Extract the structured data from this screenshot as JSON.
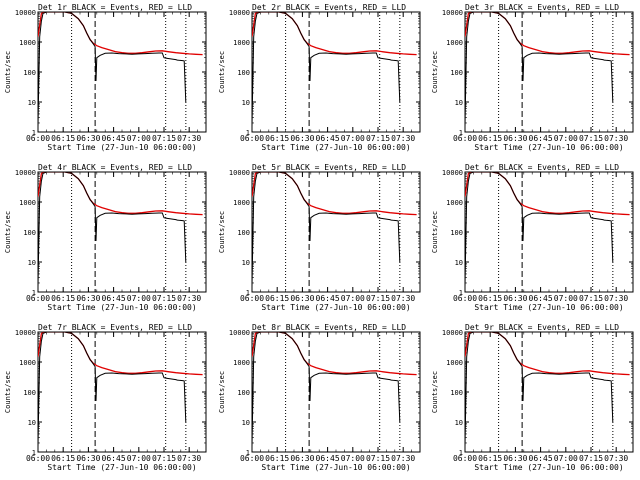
{
  "colors": {
    "events": "#000000",
    "lld": "#e00000",
    "axis": "#000000"
  },
  "chart_data": {
    "type": "line",
    "panel_count": 9,
    "layout": "3x3 grid",
    "x_tick_labels": [
      "06:00",
      "06:15",
      "06:30",
      "06:45",
      "07:00",
      "07:15",
      "07:30"
    ],
    "x_range_minutes": [
      0,
      100
    ],
    "xlabel": "Start Time (27-Jun-10 06:00:00)",
    "ylabel": "Counts/sec",
    "y_scale": "log",
    "ylim": [
      1,
      10000
    ],
    "y_tick_labels": [
      "1",
      "10",
      "100",
      "1000",
      "10000"
    ],
    "vertical_markers": {
      "dotted_minutes": [
        20,
        76,
        88
      ],
      "dashed_minutes": [
        34
      ]
    },
    "panels": [
      {
        "title": "Det 1r BLACK = Events, RED = LLD"
      },
      {
        "title": "Det 2r BLACK = Events, RED = LLD"
      },
      {
        "title": "Det 3r BLACK = Events, RED = LLD"
      },
      {
        "title": "Det 4r BLACK = Events, RED = LLD"
      },
      {
        "title": "Det 5r BLACK = Events, RED = LLD"
      },
      {
        "title": "Det 6r BLACK = Events, RED = LLD"
      },
      {
        "title": "Det 7r BLACK = Events, RED = LLD"
      },
      {
        "title": "Det 8r BLACK = Events, RED = LLD"
      },
      {
        "title": "Det 9r BLACK = Events, RED = LLD"
      }
    ],
    "series": [
      {
        "name": "LLD",
        "color": "red",
        "x": [
          0,
          2,
          5,
          8,
          12,
          16,
          20,
          24,
          27,
          29,
          31,
          33,
          35,
          38,
          42,
          46,
          50,
          54,
          58,
          62,
          66,
          70,
          74,
          78,
          82,
          86,
          90,
          94,
          98
        ],
        "y": [
          1500,
          9000,
          10000,
          10000,
          10000,
          10000,
          9000,
          6000,
          3500,
          2000,
          1200,
          900,
          750,
          650,
          560,
          480,
          440,
          420,
          420,
          440,
          470,
          500,
          510,
          470,
          440,
          420,
          400,
          390,
          380
        ]
      },
      {
        "name": "Events",
        "color": "black",
        "x": [
          0,
          0.5,
          1,
          2,
          3,
          5,
          8,
          12,
          16,
          20,
          24,
          27,
          29,
          31,
          33,
          34,
          34.5,
          35,
          37,
          40,
          44,
          48,
          52,
          56,
          60,
          64,
          68,
          72,
          74,
          75,
          76,
          78,
          80,
          82,
          83,
          84,
          86,
          87,
          88
        ],
        "y": [
          1.5,
          50,
          1500,
          5000,
          9000,
          10000,
          10000,
          10000,
          10000,
          9000,
          6000,
          3500,
          2000,
          1200,
          850,
          700,
          50,
          300,
          360,
          420,
          430,
          410,
          400,
          390,
          400,
          410,
          420,
          430,
          430,
          300,
          290,
          280,
          270,
          260,
          250,
          245,
          240,
          235,
          10
        ]
      }
    ]
  }
}
